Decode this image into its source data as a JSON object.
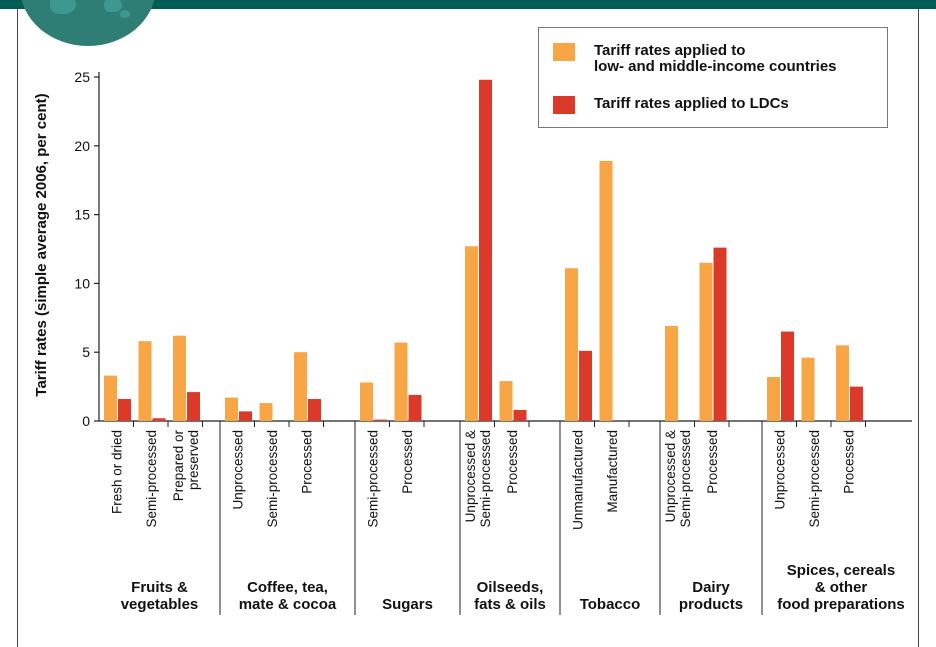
{
  "colors": {
    "band": "#005d55",
    "globe": "#2f7e76",
    "low_middle": "#f7a545",
    "ldc": "#db3a2b",
    "axis": "#222222"
  },
  "legend": {
    "items": [
      {
        "label": "Tariff rates applied to\nlow- and middle-income countries",
        "color": "#f7a545"
      },
      {
        "label": "Tariff rates applied to LDCs",
        "color": "#db3a2b"
      }
    ],
    "placement": "top-right"
  },
  "chart_data": {
    "type": "bar",
    "title": "",
    "ylabel": "Tariff rates (simple average 2006, per cent)",
    "ylim": [
      0,
      25
    ],
    "yticks": [
      0,
      5,
      10,
      15,
      20,
      25
    ],
    "grid": false,
    "series": [
      {
        "name": "Tariff rates applied to low- and middle-income countries"
      },
      {
        "name": "Tariff rates applied to LDCs"
      }
    ],
    "groups": [
      {
        "label": "Fruits &\nvegetables",
        "categories": [
          {
            "label": "Fresh or dried",
            "values": [
              3.3,
              1.6
            ]
          },
          {
            "label": "Semi-processed",
            "values": [
              5.8,
              0.2
            ]
          },
          {
            "label": "Prepared or\npreserved",
            "values": [
              6.2,
              2.1
            ]
          }
        ]
      },
      {
        "label": "Coffee, tea,\nmate & cocoa",
        "categories": [
          {
            "label": "Unprocessed",
            "values": [
              1.7,
              0.7
            ]
          },
          {
            "label": "Semi-processed",
            "values": [
              1.3,
              null
            ]
          },
          {
            "label": "Processed",
            "values": [
              5.0,
              1.6
            ]
          }
        ]
      },
      {
        "label": "Sugars",
        "categories": [
          {
            "label": "Semi-processed",
            "values": [
              2.8,
              0.1
            ]
          },
          {
            "label": "Processed",
            "values": [
              5.7,
              1.9
            ]
          }
        ]
      },
      {
        "label": "Oilseeds,\nfats & oils",
        "categories": [
          {
            "label": "Unprocessed &\nSemi-processed",
            "values": [
              12.7,
              24.8
            ]
          },
          {
            "label": "Processed",
            "values": [
              2.9,
              0.8
            ]
          }
        ]
      },
      {
        "label": "Tobacco",
        "categories": [
          {
            "label": "Unmanufactured",
            "values": [
              11.1,
              5.1
            ]
          },
          {
            "label": "Manufactured",
            "values": [
              18.9,
              null
            ]
          }
        ]
      },
      {
        "label": "Dairy\nproducts",
        "categories": [
          {
            "label": "Unprocessed &\nSemi-processed",
            "values": [
              6.9,
              null
            ]
          },
          {
            "label": "Processed",
            "values": [
              11.5,
              12.6
            ]
          }
        ]
      },
      {
        "label": "Spices, cereals\n& other\nfood preparations",
        "categories": [
          {
            "label": "Unprocessed",
            "values": [
              3.2,
              6.5
            ]
          },
          {
            "label": "Semi-processed",
            "values": [
              4.6,
              null
            ]
          },
          {
            "label": "Processed",
            "values": [
              5.5,
              2.5
            ]
          }
        ]
      }
    ]
  }
}
